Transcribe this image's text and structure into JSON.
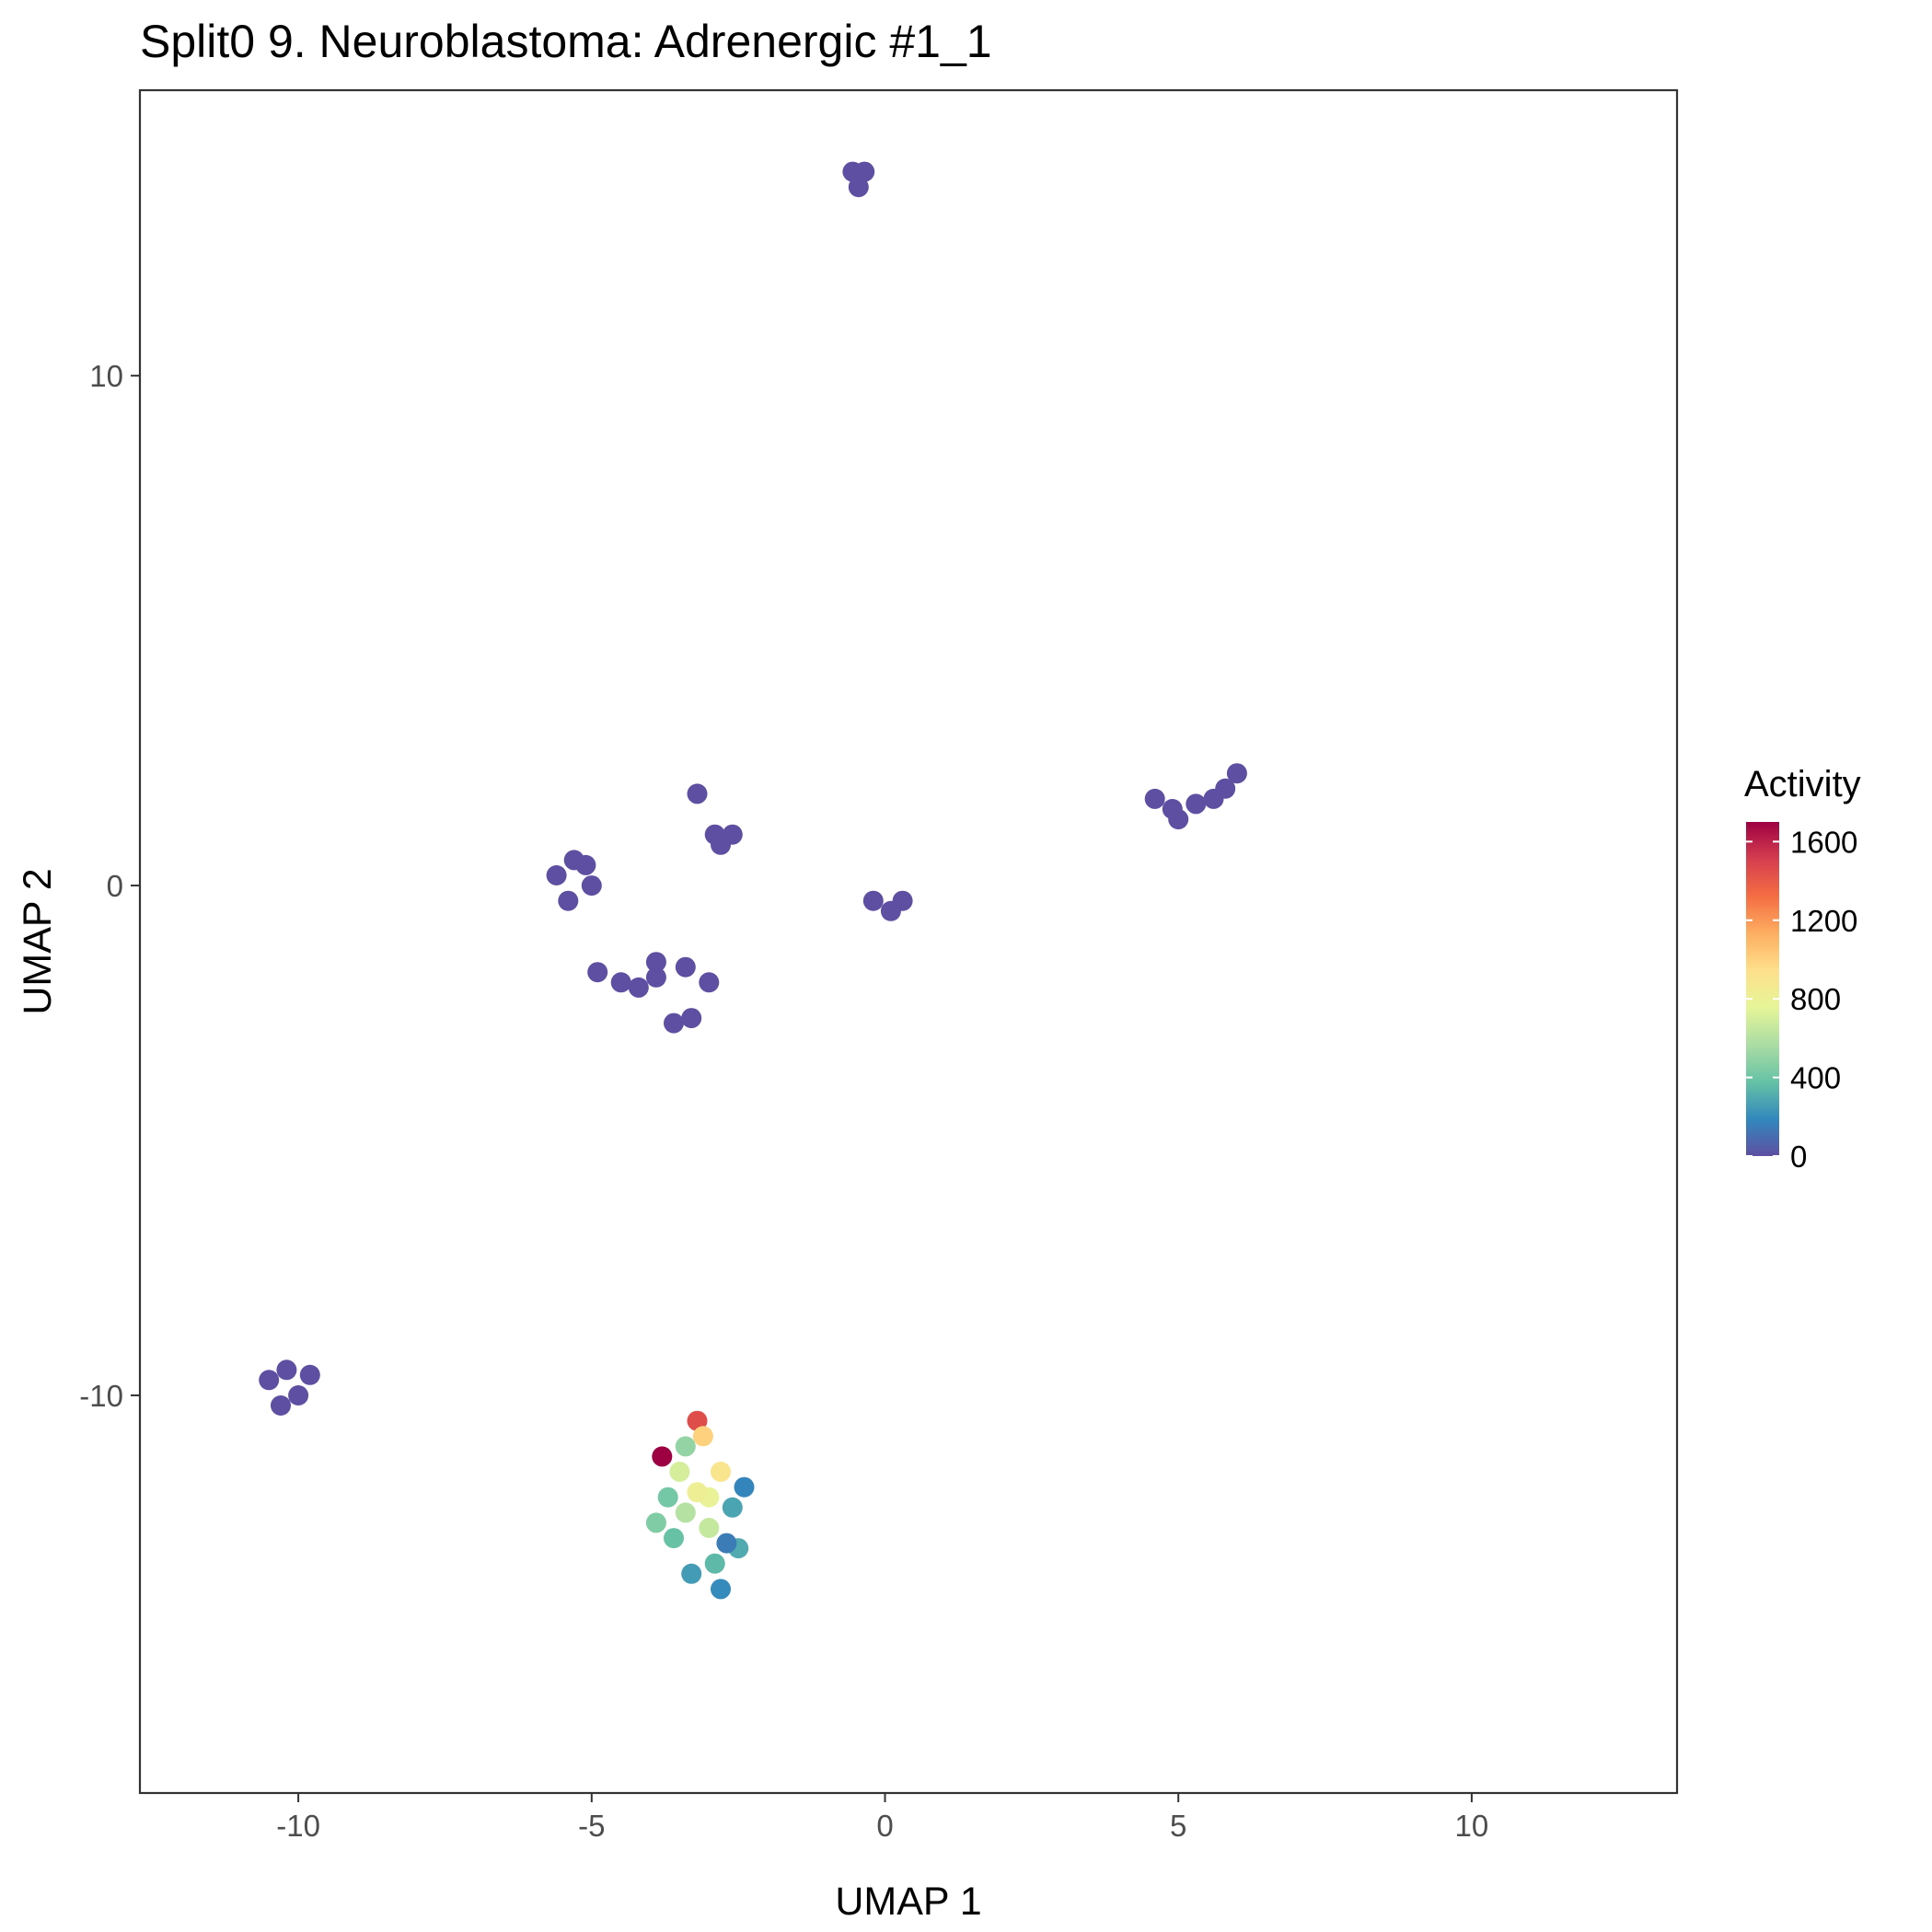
{
  "chart_data": {
    "type": "scatter",
    "title": "Split0 9. Neuroblastoma: Adrenergic #1_1",
    "xlabel": "UMAP 1",
    "ylabel": "UMAP 2",
    "xlim": [
      -12.7,
      13.5
    ],
    "ylim": [
      -17.8,
      15.6
    ],
    "x_ticks": [
      -10,
      -5,
      0,
      5,
      10
    ],
    "x_tick_labels": [
      "-10",
      "-5",
      "0",
      "5",
      "10"
    ],
    "y_ticks": [
      -10,
      0,
      10
    ],
    "y_tick_labels": [
      "-10",
      "0",
      "10"
    ],
    "grid": false,
    "legend": {
      "title": "Activity",
      "placement": "right",
      "range": [
        0,
        1700
      ],
      "breaks": [
        0,
        400,
        800,
        1200,
        1600
      ],
      "break_labels": [
        "0",
        "400",
        "800",
        "1200",
        "1600"
      ],
      "colors": [
        "#5E4FA2",
        "#3288BD",
        "#66C2A5",
        "#ABDDA4",
        "#E6F598",
        "#FEE08B",
        "#FDAE61",
        "#F46D43",
        "#D53E4F",
        "#9E0142"
      ]
    },
    "clusters": [
      {
        "cells": [
          [
            -0.55,
            14.0
          ],
          [
            -0.45,
            13.7
          ],
          [
            -0.35,
            14.0
          ]
        ]
      },
      {
        "cells": [
          [
            -10.5,
            -9.7
          ],
          [
            -10.2,
            -9.5
          ],
          [
            -10.0,
            -10.0
          ],
          [
            -9.8,
            -9.6
          ],
          [
            -10.3,
            -10.2
          ]
        ]
      },
      {
        "cells": [
          [
            -3.8,
            -11.2
          ],
          [
            -3.2,
            -10.5
          ],
          [
            -3.1,
            -10.8
          ],
          [
            -2.8,
            -11.5
          ],
          [
            -3.0,
            -12.0
          ],
          [
            -3.4,
            -12.3
          ],
          [
            -3.7,
            -12.0
          ],
          [
            -3.6,
            -12.8
          ],
          [
            -2.9,
            -13.3
          ],
          [
            -2.5,
            -13.0
          ],
          [
            -2.6,
            -12.2
          ],
          [
            -3.3,
            -13.5
          ],
          [
            -2.8,
            -13.8
          ],
          [
            -3.5,
            -11.5
          ],
          [
            -2.4,
            -11.8
          ],
          [
            -3.9,
            -12.5
          ],
          [
            -3.0,
            -12.6
          ],
          [
            -3.2,
            -11.9
          ],
          [
            -2.7,
            -12.9
          ],
          [
            -3.4,
            -11.0
          ]
        ],
        "activity": [
          1700,
          1450,
          1000,
          900,
          780,
          600,
          420,
          380,
          350,
          300,
          280,
          250,
          200,
          700,
          180,
          450,
          650,
          820,
          150,
          500
        ]
      },
      {
        "cells": [
          [
            -0.2,
            -0.3
          ],
          [
            0.3,
            -0.3
          ],
          [
            0.1,
            -0.5
          ]
        ]
      },
      {
        "cells": [
          [
            -3.2,
            1.8
          ],
          [
            -2.9,
            1.0
          ],
          [
            -2.6,
            1.0
          ],
          [
            -2.8,
            0.8
          ]
        ]
      },
      {
        "cells": [
          [
            -4.9,
            -1.7
          ],
          [
            -4.5,
            -1.9
          ],
          [
            -4.2,
            -2.0
          ],
          [
            -3.9,
            -1.8
          ],
          [
            -3.6,
            -2.7
          ],
          [
            -3.3,
            -2.6
          ],
          [
            -3.9,
            -1.5
          ],
          [
            -3.4,
            -1.6
          ],
          [
            -3.0,
            -1.9
          ]
        ]
      },
      {
        "cells": [
          [
            -5.6,
            0.2
          ],
          [
            -5.3,
            0.5
          ],
          [
            -5.0,
            0.0
          ],
          [
            -5.4,
            -0.3
          ],
          [
            -5.1,
            0.4
          ]
        ]
      },
      {
        "cells": [
          [
            4.6,
            1.7
          ],
          [
            4.9,
            1.5
          ],
          [
            5.3,
            1.6
          ],
          [
            5.6,
            1.7
          ],
          [
            5.0,
            1.3
          ],
          [
            5.8,
            1.9
          ],
          [
            6.0,
            2.2
          ]
        ]
      }
    ]
  }
}
